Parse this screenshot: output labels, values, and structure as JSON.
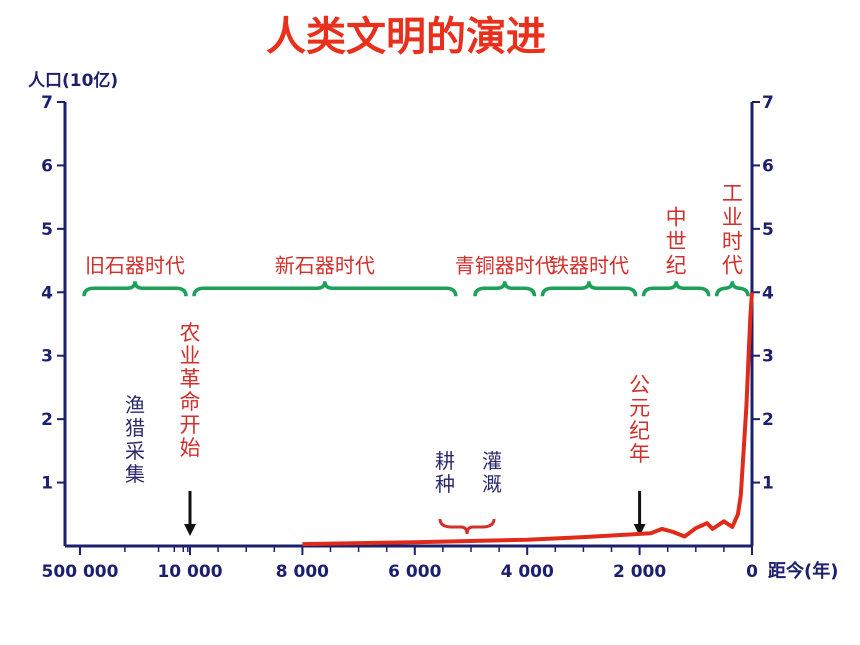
{
  "chart_data": {
    "type": "line",
    "title": "人类文明的演进",
    "ylabel": "人口(10亿)",
    "xlabel": "距今(年)",
    "ylim": [
      0,
      7
    ],
    "y_ticks": [
      "1",
      "2",
      "3",
      "4",
      "5",
      "6",
      "7"
    ],
    "x_tick_labels": [
      "500 000",
      "10 000",
      "8 000",
      "6 000",
      "4 000",
      "2 000",
      "0"
    ],
    "x_tick_years": [
      10000,
      8000,
      6000,
      4000,
      2000,
      0
    ],
    "series": [
      {
        "color": "#e02a1a",
        "x": [
          8000,
          6000,
          4000,
          3000,
          2000,
          1800,
          1600,
          1400,
          1200,
          1000,
          800,
          700,
          500,
          350,
          250,
          200,
          150,
          100,
          60,
          30,
          0
        ],
        "y": [
          0.03,
          0.06,
          0.1,
          0.14,
          0.19,
          0.2,
          0.27,
          0.22,
          0.15,
          0.28,
          0.36,
          0.27,
          0.39,
          0.3,
          0.5,
          0.8,
          1.5,
          2.2,
          3.0,
          3.6,
          4.0
        ]
      }
    ],
    "eras": [
      {
        "label": "旧石器时代",
        "from": 500000,
        "to": 10000
      },
      {
        "label": "新石器时代",
        "from": 10000,
        "to": 5200
      },
      {
        "label": "青铜器时代",
        "from": 5000,
        "to": 3800
      },
      {
        "label": "铁器时代",
        "from": 3800,
        "to": 2000
      },
      {
        "label": "中世纪",
        "from": 2000,
        "to": 700
      },
      {
        "label": "工业时代",
        "from": 700,
        "to": 0
      }
    ],
    "annotations": [
      {
        "text": "农业革命开始",
        "year": 10000,
        "arrow": true
      },
      {
        "text": "渔猎采集",
        "year": 12000
      },
      {
        "text": "公元纪年",
        "year": 2000,
        "arrow": true
      },
      {
        "text": "耕种",
        "year": 5400
      },
      {
        "text": "灌溉",
        "year": 4800
      }
    ],
    "colors": {
      "title": "#e8301c",
      "era_label": "#d2302c",
      "brace": "#1ea05a",
      "axis": "#1c1f6e",
      "line": "#e02a1a",
      "annotation_dark": "#2b2a6e"
    }
  }
}
